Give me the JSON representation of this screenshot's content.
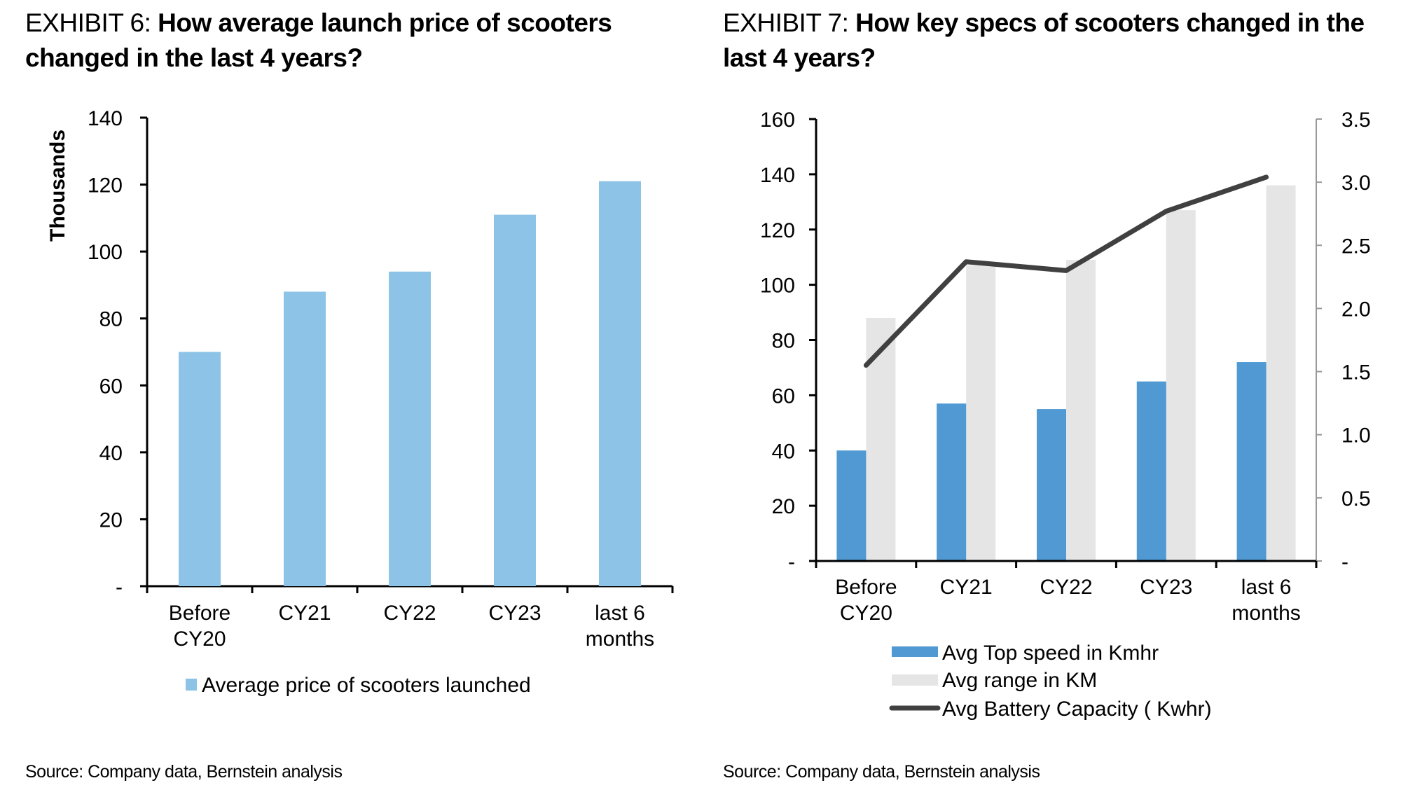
{
  "exhibits": [
    {
      "prefix": "EXHIBIT 6: ",
      "title": "How average launch price of scooters changed in the last 4 years?",
      "source": "Source: Company data, Bernstein analysis"
    },
    {
      "prefix": "EXHIBIT 7: ",
      "title": "How key specs of scooters changed in the last 4 years?",
      "source": "Source: Company data, Bernstein analysis"
    }
  ],
  "colors": {
    "price_bar": "#8dc3e6",
    "top_speed_bar": "#5099d2",
    "range_bar": "#e5e5e5",
    "battery_line": "#404040",
    "axis": "#000000",
    "right_axis": "#999999"
  },
  "chart_data": [
    {
      "type": "bar",
      "title": "How average launch price of scooters changed in the last 4 years?",
      "categories": [
        [
          "Before",
          "CY20"
        ],
        [
          "CY21"
        ],
        [
          "CY22"
        ],
        [
          "CY23"
        ],
        [
          "last 6",
          "months"
        ]
      ],
      "series": [
        {
          "name": "Average price of scooters launched",
          "values": [
            70,
            88,
            94,
            111,
            121
          ]
        }
      ],
      "xlabel": "",
      "ylabel": "Thousands",
      "ylim": [
        0,
        140
      ],
      "yticks": [
        0,
        20,
        40,
        60,
        80,
        100,
        120,
        140
      ],
      "ytick_labels": [
        "-",
        "20",
        "40",
        "60",
        "80",
        "100",
        "120",
        "140"
      ],
      "grid": false,
      "legend": "bottom"
    },
    {
      "type": "bar",
      "title": "How key specs of scooters changed in the last 4 years?",
      "categories": [
        [
          "Before",
          "CY20"
        ],
        [
          "CY21"
        ],
        [
          "CY22"
        ],
        [
          "CY23"
        ],
        [
          "last 6",
          "months"
        ]
      ],
      "series": [
        {
          "name": "Avg Top speed in Kmhr",
          "type": "bar",
          "axis": "left",
          "values": [
            40,
            57,
            55,
            65,
            72
          ]
        },
        {
          "name": "Avg range in KM",
          "type": "bar",
          "axis": "left",
          "values": [
            88,
            107,
            109,
            127,
            136
          ]
        },
        {
          "name": "Avg Battery Capacity ( Kwhr)",
          "type": "line",
          "axis": "right",
          "values": [
            1.55,
            2.37,
            2.3,
            2.77,
            3.04
          ]
        }
      ],
      "ylim": [
        0,
        160
      ],
      "yticks": [
        0,
        20,
        40,
        60,
        80,
        100,
        120,
        140,
        160
      ],
      "ytick_labels": [
        "-",
        "20",
        "40",
        "60",
        "80",
        "100",
        "120",
        "140",
        "160"
      ],
      "y2lim": [
        0,
        3.5
      ],
      "y2ticks": [
        0,
        0.5,
        1.0,
        1.5,
        2.0,
        2.5,
        3.0,
        3.5
      ],
      "y2tick_labels": [
        "-",
        "0.5",
        "1.0",
        "1.5",
        "2.0",
        "2.5",
        "3.0",
        "3.5"
      ],
      "grid": false,
      "legend": "bottom"
    }
  ]
}
